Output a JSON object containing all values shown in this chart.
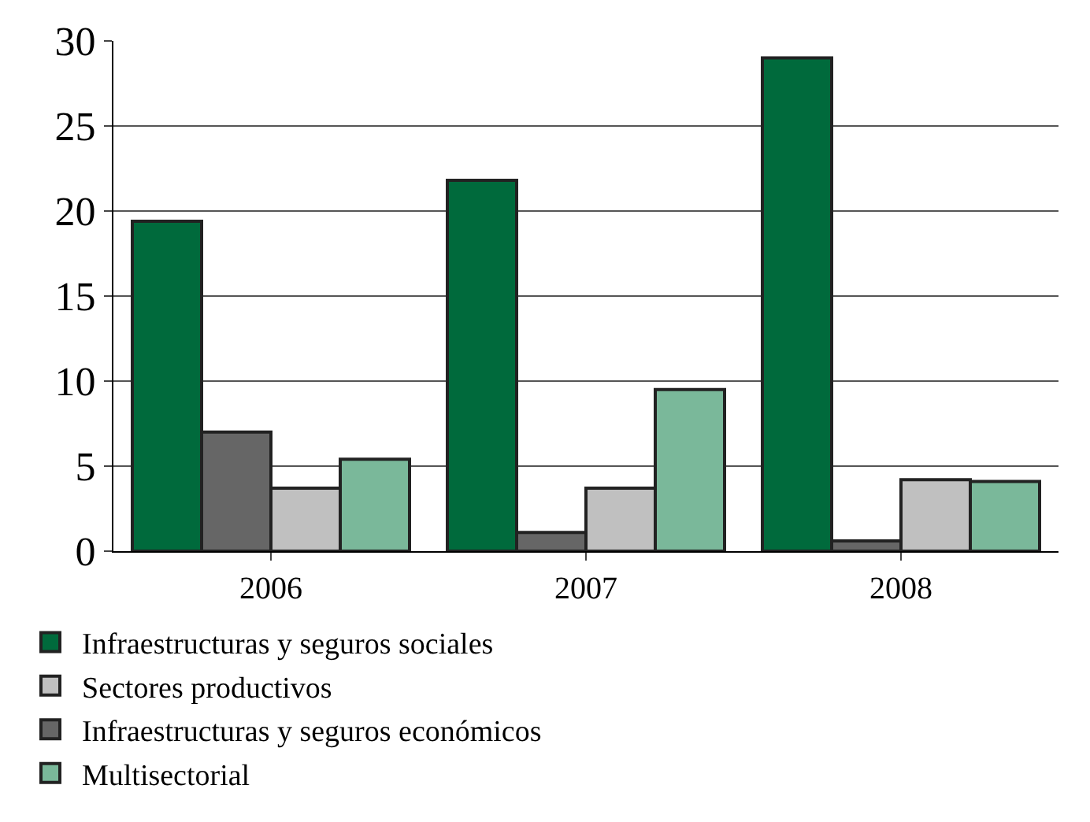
{
  "chart_data": {
    "type": "bar",
    "categories": [
      "2006",
      "2007",
      "2008"
    ],
    "series": [
      {
        "name": "Infraestructuras y seguros sociales",
        "color": "#006a3c",
        "values": [
          19.4,
          21.8,
          29.0
        ]
      },
      {
        "name": "Infraestructuras y seguros económicos",
        "color": "#666666",
        "values": [
          7.0,
          1.1,
          0.6
        ]
      },
      {
        "name": "Sectores productivos",
        "color": "#c0c0c0",
        "values": [
          3.7,
          3.7,
          4.2
        ]
      },
      {
        "name": "Multisectorial",
        "color": "#7ab89a",
        "values": [
          5.4,
          9.5,
          4.1
        ]
      }
    ],
    "ylim": [
      0,
      30
    ],
    "yticks": [
      0,
      5,
      10,
      15,
      20,
      25,
      30
    ],
    "grid": "y",
    "legend": "bottom"
  }
}
